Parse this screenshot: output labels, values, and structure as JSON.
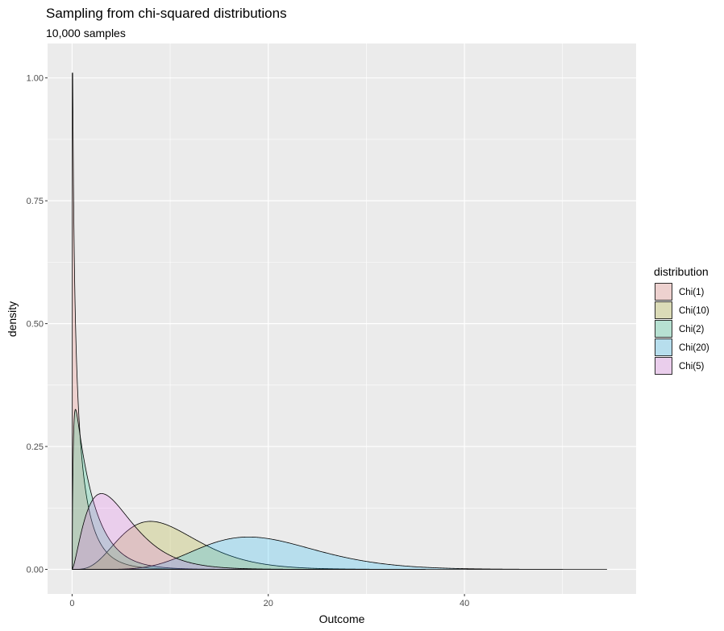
{
  "chart_data": {
    "type": "area",
    "title": "Sampling from chi-squared distributions",
    "subtitle": "10,000 samples",
    "xlabel": "Outcome",
    "ylabel": "density",
    "xlim": [
      -2.5,
      57.5
    ],
    "ylim": [
      -0.05,
      1.07
    ],
    "x_ticks": [
      0,
      20,
      40
    ],
    "x_tick_labels": [
      "0",
      "20",
      "40"
    ],
    "y_ticks": [
      0,
      0.25,
      0.5,
      0.75,
      1.0
    ],
    "y_tick_labels": [
      "0.00",
      "0.25",
      "0.50",
      "0.75",
      "1.00"
    ],
    "grid": true,
    "legend": {
      "title": "distribution",
      "placement": "right"
    },
    "series": [
      {
        "name": "Chi(1)",
        "df": 1,
        "color": "#f8766d",
        "x_max": 28.0
      },
      {
        "name": "Chi(10)",
        "df": 10,
        "color": "#a3a500",
        "x_max": 36.0
      },
      {
        "name": "Chi(2)",
        "df": 2,
        "color": "#00bf7d",
        "x_max": 22.0
      },
      {
        "name": "Chi(20)",
        "df": 20,
        "color": "#00b0f6",
        "x_max": 54.5
      },
      {
        "name": "Chi(5)",
        "df": 5,
        "color": "#e76bf3",
        "x_max": 30.0
      }
    ]
  }
}
